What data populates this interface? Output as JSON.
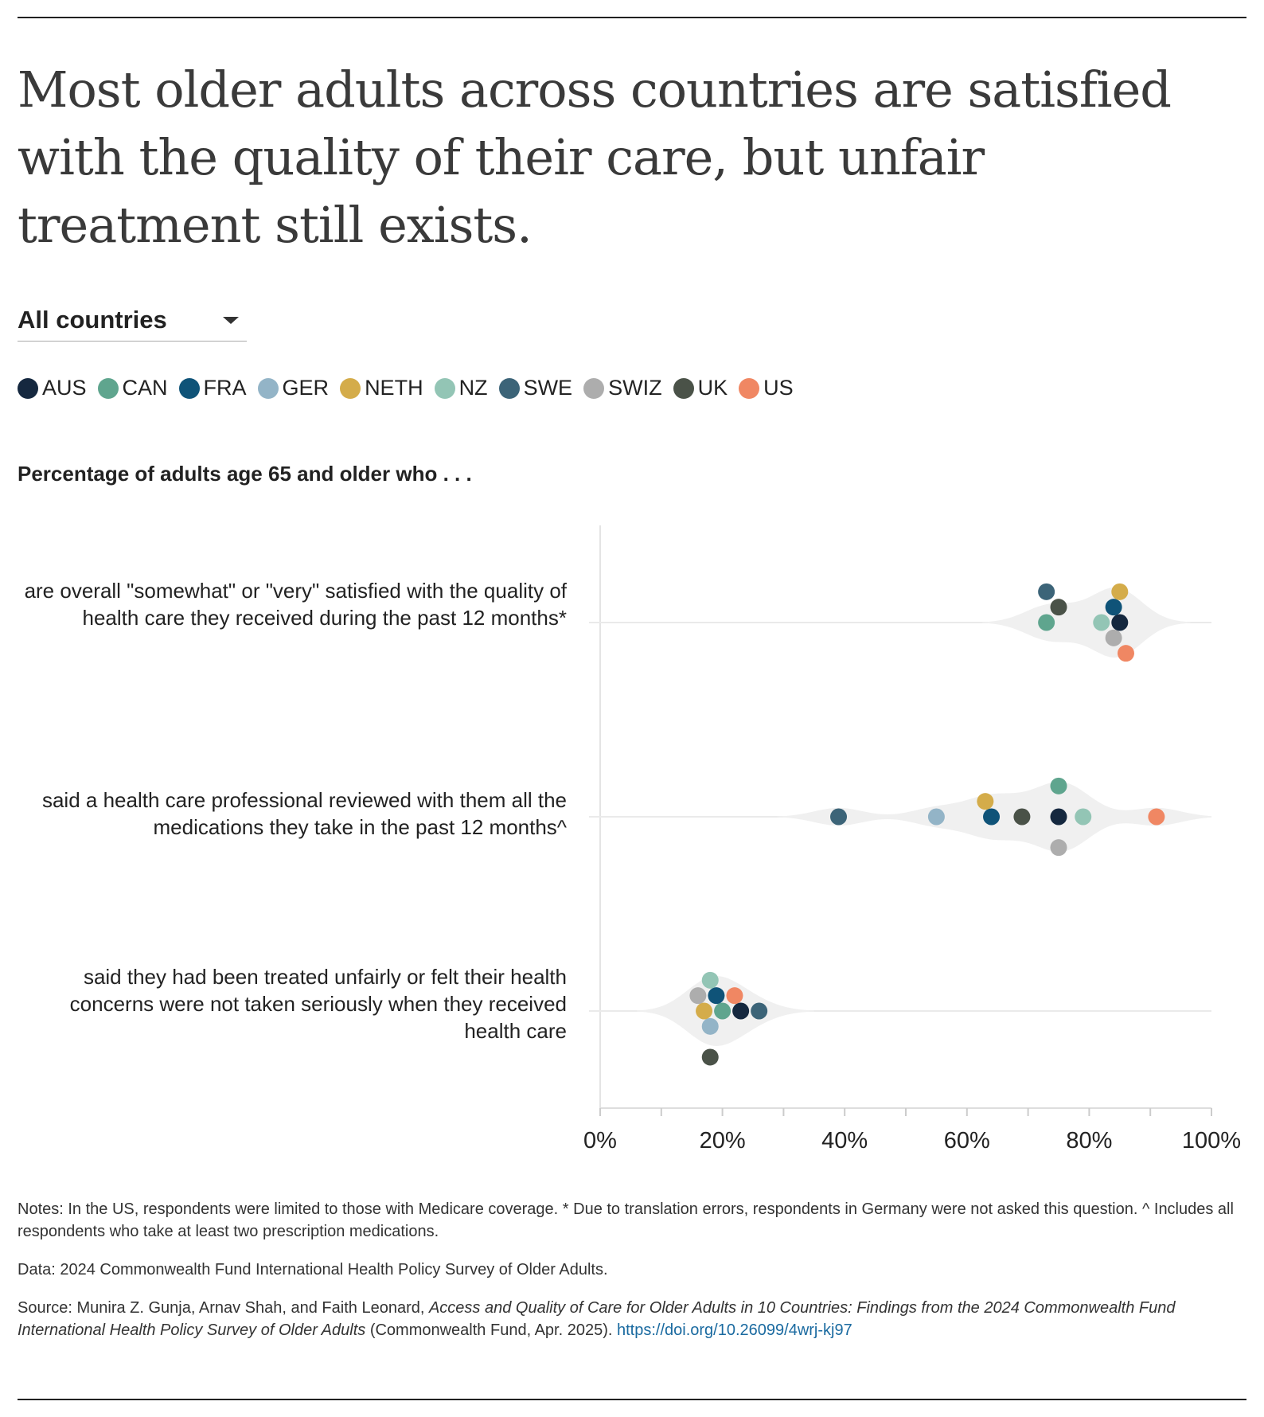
{
  "title": "Most older adults across countries are satisfied with the quality of their care, but unfair treatment still exists.",
  "dropdown": {
    "selected": "All countries"
  },
  "legend": [
    {
      "code": "AUS",
      "color": "#15283f"
    },
    {
      "code": "CAN",
      "color": "#5fa58e"
    },
    {
      "code": "FRA",
      "color": "#0f5378"
    },
    {
      "code": "GER",
      "color": "#93b4c7"
    },
    {
      "code": "NETH",
      "color": "#d4ac4a"
    },
    {
      "code": "NZ",
      "color": "#93c5b5"
    },
    {
      "code": "SWE",
      "color": "#3c6478"
    },
    {
      "code": "SWIZ",
      "color": "#adadad"
    },
    {
      "code": "UK",
      "color": "#4a5248"
    },
    {
      "code": "US",
      "color": "#f08763"
    }
  ],
  "chart_data": {
    "type": "scatter",
    "subtitle": "Percentage of adults age 65 and older who . . .",
    "xlim": [
      0,
      100
    ],
    "xticks": [
      "0%",
      "20%",
      "40%",
      "60%",
      "80%",
      "100%"
    ],
    "categories": [
      "are overall \"somewhat\" or \"very\" satisfied with the quality of health care they received during the past 12 months*",
      "said a health care professional reviewed with them all the medications they take in the past 12 months^",
      "said they had been treated unfairly or felt their health concerns were not taken seriously when they received health care"
    ],
    "series": [
      {
        "name": "AUS",
        "values": [
          85,
          75,
          23
        ]
      },
      {
        "name": "CAN",
        "values": [
          73,
          75,
          20
        ]
      },
      {
        "name": "FRA",
        "values": [
          84,
          64,
          19
        ]
      },
      {
        "name": "GER",
        "values": [
          null,
          55,
          18
        ]
      },
      {
        "name": "NETH",
        "values": [
          85,
          63,
          17
        ]
      },
      {
        "name": "NZ",
        "values": [
          82,
          79,
          18
        ]
      },
      {
        "name": "SWE",
        "values": [
          73,
          39,
          26
        ]
      },
      {
        "name": "SWIZ",
        "values": [
          84,
          75,
          16
        ]
      },
      {
        "name": "UK",
        "values": [
          75,
          69,
          18
        ]
      },
      {
        "name": "US",
        "values": [
          86,
          91,
          22
        ]
      }
    ]
  },
  "notes": {
    "n1": "Notes: In the US, respondents were limited to those with Medicare coverage. * Due to translation errors, respondents in Germany were not asked this question. ^ Includes all respondents who take at least two prescription medications.",
    "data": "Data: 2024 Commonwealth Fund International Health Policy Survey of Older Adults.",
    "src_a": "Source: Munira Z. Gunja, Arnav Shah, and Faith Leonard, ",
    "src_b": "Access and Quality of Care for Older Adults in 10 Countries: Findings from the 2024 Commonwealth Fund International Health Policy Survey of Older Adults",
    "src_c": " (Commonwealth Fund, Apr. 2025). ",
    "link": "https://doi.org/10.26099/4wrj-kj97"
  }
}
